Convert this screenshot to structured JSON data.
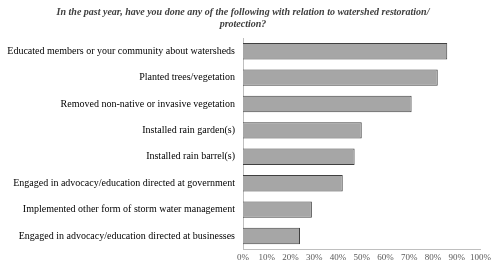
{
  "chart_data": {
    "type": "bar",
    "orientation": "horizontal",
    "title": [
      "In the past year, have you done any of the following with relation to watershed restoration/",
      "protection?"
    ],
    "categories": [
      "Educated members or your community about watersheds",
      "Planted trees/vegetation",
      "Removed non-native or invasive vegetation",
      "Installed rain garden(s)",
      "Installed rain barrel(s)",
      "Engaged in advocacy/education directed at government",
      "Implemented other form of storm water management",
      "Engaged in advocacy/education directed at businesses"
    ],
    "values": [
      86,
      82,
      71,
      50,
      47,
      42,
      29,
      24
    ],
    "color": "#a6a6a6",
    "xlim": [
      0,
      100
    ],
    "xticks": [
      {
        "value": 0,
        "label": "0%"
      },
      {
        "value": 10,
        "label": "10%"
      },
      {
        "value": 20,
        "label": "20%"
      },
      {
        "value": 30,
        "label": "30%"
      },
      {
        "value": 40,
        "label": "40%"
      },
      {
        "value": 50,
        "label": "50%"
      },
      {
        "value": 60,
        "label": "60%"
      },
      {
        "value": 70,
        "label": "70%"
      },
      {
        "value": 80,
        "label": "80%"
      },
      {
        "value": 90,
        "label": "90%"
      },
      {
        "value": 100,
        "label": "100%"
      }
    ],
    "grid": false
  }
}
